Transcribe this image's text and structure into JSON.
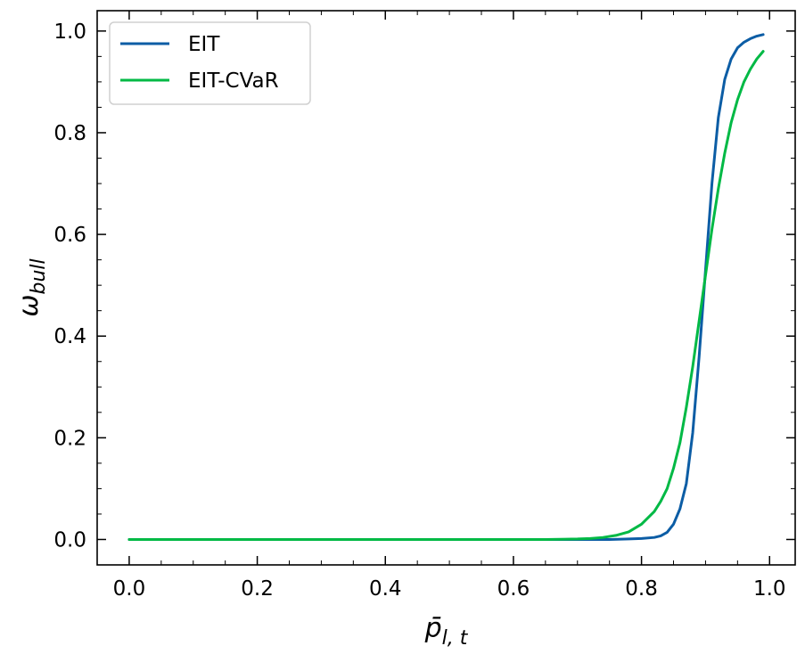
{
  "chart_data": {
    "type": "line",
    "title": "",
    "xlabel": "p̄",
    "xlabel_subscript": "l, t",
    "ylabel": "ω",
    "ylabel_subscript": "bull",
    "xlim": [
      -0.05,
      1.04
    ],
    "ylim": [
      -0.05,
      1.04
    ],
    "xticks": [
      0.0,
      0.2,
      0.4,
      0.6,
      0.8,
      1.0
    ],
    "yticks": [
      0.0,
      0.2,
      0.4,
      0.6,
      0.8,
      1.0
    ],
    "xtick_labels": [
      "0.0",
      "0.2",
      "0.4",
      "0.6",
      "0.8",
      "1.0"
    ],
    "ytick_labels": [
      "0.0",
      "0.2",
      "0.4",
      "0.6",
      "0.8",
      "1.0"
    ],
    "grid": false,
    "minor_ticks": true,
    "ticks_direction": "in",
    "legend_position": "top-left",
    "series": [
      {
        "name": "EIT",
        "color": "#0c5da5",
        "x": [
          0.0,
          0.1,
          0.2,
          0.3,
          0.4,
          0.5,
          0.6,
          0.65,
          0.7,
          0.75,
          0.78,
          0.8,
          0.82,
          0.83,
          0.84,
          0.85,
          0.86,
          0.87,
          0.88,
          0.89,
          0.9,
          0.91,
          0.92,
          0.93,
          0.94,
          0.95,
          0.96,
          0.97,
          0.98,
          0.99
        ],
        "y": [
          0.0,
          0.0,
          0.0,
          0.0,
          0.0,
          0.0,
          0.0,
          0.0,
          0.0,
          0.0,
          0.001,
          0.002,
          0.004,
          0.007,
          0.014,
          0.03,
          0.06,
          0.11,
          0.21,
          0.36,
          0.53,
          0.7,
          0.83,
          0.905,
          0.945,
          0.967,
          0.978,
          0.985,
          0.99,
          0.993
        ]
      },
      {
        "name": "EIT-CVaR",
        "color": "#00b945",
        "x": [
          0.0,
          0.1,
          0.2,
          0.3,
          0.4,
          0.5,
          0.6,
          0.65,
          0.7,
          0.72,
          0.74,
          0.76,
          0.78,
          0.8,
          0.82,
          0.83,
          0.84,
          0.85,
          0.86,
          0.87,
          0.88,
          0.89,
          0.9,
          0.91,
          0.92,
          0.93,
          0.94,
          0.95,
          0.96,
          0.97,
          0.98,
          0.99
        ],
        "y": [
          0.0,
          0.0,
          0.0,
          0.0,
          0.0,
          0.0,
          0.0,
          0.0,
          0.001,
          0.002,
          0.004,
          0.008,
          0.015,
          0.03,
          0.055,
          0.075,
          0.1,
          0.14,
          0.19,
          0.26,
          0.34,
          0.43,
          0.52,
          0.61,
          0.69,
          0.76,
          0.82,
          0.865,
          0.9,
          0.925,
          0.945,
          0.96
        ]
      }
    ]
  }
}
